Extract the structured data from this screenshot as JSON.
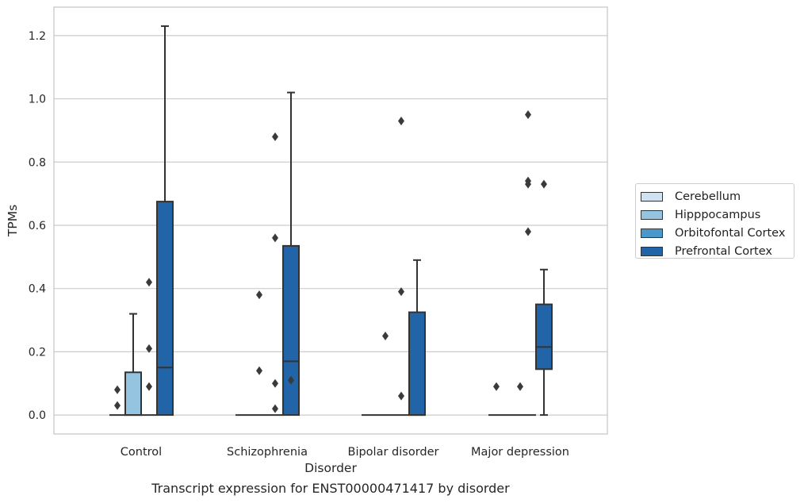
{
  "caption": "Transcript expression for ENST00000471417 by disorder",
  "chart_data": {
    "type": "box",
    "xlabel": "Disorder",
    "ylabel": "TPMs",
    "ylim": [
      -0.06,
      1.29
    ],
    "yticks": [
      0.0,
      0.2,
      0.4,
      0.6,
      0.8,
      1.0,
      1.2
    ],
    "ytick_labels": [
      "0.0",
      "0.2",
      "0.4",
      "0.6",
      "0.8",
      "1.0",
      "1.2"
    ],
    "grid": true,
    "legend_position": "right",
    "categories": [
      "Control",
      "Schizophrenia",
      "Bipolar disorder",
      "Major depression"
    ],
    "series": [
      {
        "name": "Cerebellum",
        "color": "#d0e1f2",
        "boxes": [
          {
            "q1": 0,
            "median": 0,
            "q3": 0,
            "whislo": 0,
            "whishi": 0,
            "fliers": []
          },
          {
            "q1": 0,
            "median": 0,
            "q3": 0,
            "whislo": 0,
            "whishi": 0,
            "fliers": []
          },
          {
            "q1": 0,
            "median": 0,
            "q3": 0,
            "whislo": 0,
            "whishi": 0,
            "fliers": []
          },
          {
            "q1": 0,
            "median": 0,
            "q3": 0,
            "whislo": 0,
            "whishi": 0,
            "fliers": []
          }
        ]
      },
      {
        "name": "Hipppocampus",
        "color": "#94c4df",
        "boxes": [
          {
            "q1": 0,
            "median": 0,
            "q3": 0.135,
            "whislo": 0,
            "whishi": 0.32,
            "fliers": []
          },
          {
            "q1": 0,
            "median": 0,
            "q3": 0,
            "whislo": 0,
            "whishi": 0,
            "fliers": [
              0.14,
              0.38
            ]
          },
          {
            "q1": 0,
            "median": 0,
            "q3": 0,
            "whislo": 0,
            "whishi": 0,
            "fliers": [
              0.25
            ]
          },
          {
            "q1": 0,
            "median": 0,
            "q3": 0,
            "whislo": 0,
            "whishi": 0,
            "fliers": []
          }
        ]
      },
      {
        "name": "Orbitofontal Cortex",
        "color": "#4a98c9",
        "boxes": [
          {
            "q1": 0,
            "median": 0,
            "q3": 0,
            "whislo": 0,
            "whishi": 0,
            "fliers": [
              0.09,
              0.21,
              0.42
            ]
          },
          {
            "q1": 0,
            "median": 0,
            "q3": 0,
            "whislo": 0,
            "whishi": 0,
            "fliers": [
              0.02,
              0.1,
              0.56,
              0.88
            ]
          },
          {
            "q1": 0,
            "median": 0,
            "q3": 0,
            "whislo": 0,
            "whishi": 0,
            "fliers": [
              0.06,
              0.39,
              0.93
            ]
          },
          {
            "q1": 0,
            "median": 0,
            "q3": 0,
            "whislo": 0,
            "whishi": 0,
            "fliers": [
              0.58,
              0.73,
              0.74,
              0.95
            ]
          }
        ]
      },
      {
        "name": "Prefrontal Cortex",
        "color": "#2264a8",
        "boxes": [
          {
            "q1": 0,
            "median": 0.15,
            "q3": 0.675,
            "whislo": 0,
            "whishi": 1.23,
            "fliers": []
          },
          {
            "q1": 0,
            "median": 0.17,
            "q3": 0.535,
            "whislo": 0,
            "whishi": 1.02,
            "fliers": [
              0.11
            ]
          },
          {
            "q1": 0,
            "median": 0,
            "q3": 0.325,
            "whislo": 0,
            "whishi": 0.49,
            "fliers": []
          },
          {
            "q1": 0.145,
            "median": 0.215,
            "q3": 0.35,
            "whislo": 0,
            "whishi": 0.46,
            "fliers": [
              0.73
            ]
          }
        ]
      }
    ],
    "extra_fliers": [
      {
        "category": 0,
        "position": "left",
        "values": [
          0.03,
          0.08
        ]
      },
      {
        "category": 3,
        "position": "left",
        "values": [
          0.09
        ]
      },
      {
        "category": 3,
        "position": "center",
        "values": [
          0.09
        ]
      }
    ]
  }
}
